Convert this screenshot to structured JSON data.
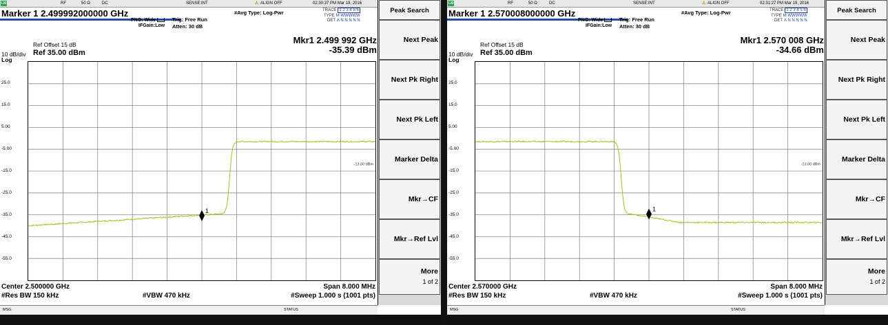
{
  "screens": [
    {
      "id": "left",
      "topbar": {
        "lxi": "LXI",
        "rf": "RF",
        "impedance": "50 Ω",
        "coupling": "DC",
        "sense": "SENSE:INT",
        "align": "ALIGN OFF",
        "datetime": "02:30:37 PM Mar 19, 2016"
      },
      "marker_title": "Marker 1  2.499992000000 GHz",
      "pno": "PNO: Wide",
      "ifgain": "IFGain:Low",
      "trig": "Trig: Free Run",
      "atten": "Atten: 30 dB",
      "avg_type": "#Avg Type: Log-Pwr",
      "trace_row": {
        "label": "TRACE",
        "value": "1 2 3 4 5 6"
      },
      "type_row": {
        "label": "TYPE",
        "value": "M WWWWW"
      },
      "det_row": {
        "label": "DET",
        "value": "A N N N N N"
      },
      "ref_offset": "Ref Offset 15 dB",
      "db_div": "10 dB/div",
      "ref_level": "Ref 35.00 dBm",
      "log_label": "Log",
      "mkr_readout_freq": "Mkr1 2.499 992 GHz",
      "mkr_readout_amp": "-35.39 dBm",
      "y_ticks": [
        "25.0",
        "15.0",
        "5.00",
        "-5.00",
        "-15.0",
        "-25.0",
        "-35.0",
        "-45.0",
        "-55.0"
      ],
      "limit_label": "-13.00 dBm",
      "marker_label": "1",
      "center": "Center 2.500000 GHz",
      "span": "Span 8.000 MHz",
      "res_bw": "#Res BW 150 kHz",
      "vbw": "#VBW 470 kHz",
      "sweep": "#Sweep  1.000 s (1001 pts)",
      "status_msg": "MSG",
      "status_label": "STATUS",
      "trace": {
        "edge": "rising",
        "low_level_start": -40.0,
        "low_level_end": -34.5,
        "high_level": -1.5,
        "edge_position": 0.58,
        "marker_position": 0.5,
        "marker_level": -35.39
      }
    },
    {
      "id": "right",
      "topbar": {
        "lxi": "LXI",
        "rf": "RF",
        "impedance": "50 Ω",
        "coupling": "DC",
        "sense": "SENSE:INT",
        "align": "ALIGN OFF",
        "datetime": "02:31:27 PM Mar 19, 2016"
      },
      "marker_title": "Marker 1  2.570008000000 GHz",
      "pno": "PNO: Wide",
      "ifgain": "IFGain:Low",
      "trig": "Trig: Free Run",
      "atten": "Atten: 30 dB",
      "avg_type": "#Avg Type: Log-Pwr",
      "trace_row": {
        "label": "TRACE",
        "value": "1 2 3 4 5 6"
      },
      "type_row": {
        "label": "TYPE",
        "value": "M WWWWW"
      },
      "det_row": {
        "label": "DET",
        "value": "A N N N N N"
      },
      "ref_offset": "Ref Offset 15 dB",
      "db_div": "10 dB/div",
      "ref_level": "Ref 35.00 dBm",
      "log_label": "Log",
      "mkr_readout_freq": "Mkr1 2.570 008 GHz",
      "mkr_readout_amp": "-34.66 dBm",
      "y_ticks": [
        "25.0",
        "15.0",
        "5.00",
        "-5.00",
        "-15.0",
        "-25.0",
        "-35.0",
        "-45.0",
        "-55.0"
      ],
      "limit_label": "-13.00 dBm",
      "marker_label": "1",
      "center": "Center 2.570000 GHz",
      "span": "Span 8.000 MHz",
      "res_bw": "#Res BW 150 kHz",
      "vbw": "#VBW 470 kHz",
      "sweep": "#Sweep  1.000 s (1001 pts)",
      "status_msg": "MSG",
      "status_label": "STATUS",
      "trace": {
        "edge": "falling",
        "high_level": -1.5,
        "low_level_start": -34.5,
        "low_level_end": -38.5,
        "edge_position": 0.42,
        "marker_position": 0.5,
        "marker_level": -34.66
      }
    }
  ],
  "softkeys": {
    "title": "Peak Search",
    "items": [
      "Next Peak",
      "Next Pk Right",
      "Next Pk Left",
      "Marker Delta",
      "Mkr→CF",
      "Mkr→Ref Lvl"
    ],
    "more_label": "More",
    "more_page": "1 of 2"
  },
  "colors": {
    "trace": "#b5b81c",
    "grid": "#8a8a8a",
    "marker_bar": "#1d4fa7",
    "limit": "#888888"
  }
}
